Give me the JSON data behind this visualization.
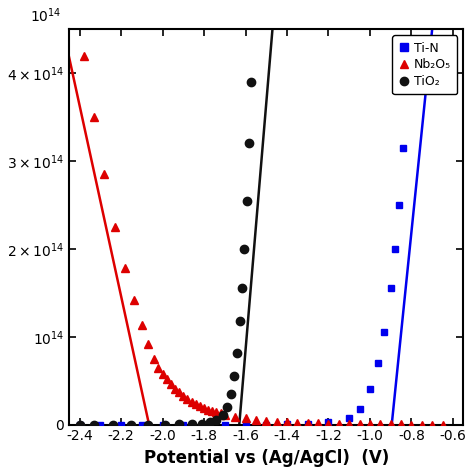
{
  "xlabel": "Potential vs (Ag/AgCl)  (V)",
  "xlim": [
    -2.45,
    -0.55
  ],
  "ylim": [
    0,
    450000000000000.0
  ],
  "xticks": [
    -2.4,
    -2.2,
    -2.0,
    -1.8,
    -1.6,
    -1.4,
    -1.2,
    -1.0,
    -0.8,
    -0.6
  ],
  "ytick_values": [
    0,
    100000000000000.0,
    200000000000000.0,
    300000000000000.0,
    400000000000000.0
  ],
  "background_color": "#ffffff",
  "series": [
    {
      "label": "Ti-N",
      "color": "#0000ee",
      "marker": "s",
      "markersize": 5,
      "linewidth": 1.8,
      "x_data": [
        -0.82,
        -0.84,
        -0.86,
        -0.88,
        -0.9,
        -0.93,
        -0.96,
        -1.0,
        -1.05,
        -1.1,
        -1.2,
        -1.3,
        -1.4,
        -1.5,
        -1.6,
        -1.7,
        -1.8,
        -1.9,
        -2.0,
        -2.1,
        -2.2,
        -2.3,
        -2.4
      ],
      "y_data": [
        390000000000000.0,
        315000000000000.0,
        250000000000000.0,
        200000000000000.0,
        155000000000000.0,
        105000000000000.0,
        70000000000000.0,
        40000000000000.0,
        18000000000000.0,
        8000000000000.0,
        2500000000000.0,
        800000000000.0,
        300000000000.0,
        100000000000.0,
        50000000000.0,
        30000000000.0,
        20000000000.0,
        10000000000.0,
        10000000000.0,
        10000000000.0,
        10000000000.0,
        10000000000.0,
        10000000000.0
      ],
      "fit_x": [
        -0.7,
        -0.895
      ],
      "fit_y": [
        450000000000000.0,
        0.0
      ]
    },
    {
      "label": "Nb₂O₅",
      "color": "#dd0000",
      "marker": "^",
      "markersize": 6,
      "linewidth": 1.8,
      "x_data": [
        -2.38,
        -2.33,
        -2.28,
        -2.23,
        -2.18,
        -2.14,
        -2.1,
        -2.07,
        -2.04,
        -2.02,
        -2.0,
        -1.98,
        -1.96,
        -1.94,
        -1.92,
        -1.9,
        -1.88,
        -1.86,
        -1.84,
        -1.82,
        -1.8,
        -1.78,
        -1.76,
        -1.74,
        -1.72,
        -1.7,
        -1.65,
        -1.6,
        -1.55,
        -1.5,
        -1.45,
        -1.4,
        -1.35,
        -1.3,
        -1.25,
        -1.2,
        -1.15,
        -1.1,
        -1.05,
        -1.0,
        -0.95,
        -0.9,
        -0.85,
        -0.8,
        -0.75,
        -0.7,
        -0.65
      ],
      "y_data": [
        420000000000000.0,
        350000000000000.0,
        285000000000000.0,
        225000000000000.0,
        178000000000000.0,
        142000000000000.0,
        113000000000000.0,
        92000000000000.0,
        75000000000000.0,
        65000000000000.0,
        58000000000000.0,
        52000000000000.0,
        46000000000000.0,
        41000000000000.0,
        37000000000000.0,
        33000000000000.0,
        29000000000000.0,
        26000000000000.0,
        23000000000000.0,
        21000000000000.0,
        19000000000000.0,
        17000000000000.0,
        15500000000000.0,
        14000000000000.0,
        12700000000000.0,
        11500000000000.0,
        9000000000000.0,
        7000000000000.0,
        5500000000000.0,
        4300000000000.0,
        3400000000000.0,
        2700000000000.0,
        2100000000000.0,
        1700000000000.0,
        1300000000000.0,
        1000000000000.0,
        800000000000.0,
        600000000000.0,
        500000000000.0,
        400000000000.0,
        300000000000.0,
        250000000000.0,
        200000000000.0,
        150000000000.0,
        100000000000.0,
        100000000000.0,
        100000000000.0
      ],
      "fit_x": [
        -2.48,
        -2.065
      ],
      "fit_y": [
        450000000000000.0,
        0.0
      ]
    },
    {
      "label": "TiO₂",
      "color": "#111111",
      "marker": "o",
      "markersize": 6,
      "linewidth": 1.8,
      "x_data": [
        -1.575,
        -1.585,
        -1.595,
        -1.605,
        -1.615,
        -1.625,
        -1.64,
        -1.655,
        -1.67,
        -1.69,
        -1.71,
        -1.74,
        -1.77,
        -1.81,
        -1.86,
        -1.92,
        -1.99,
        -2.07,
        -2.15,
        -2.24,
        -2.33,
        -2.4
      ],
      "y_data": [
        390000000000000.0,
        320000000000000.0,
        255000000000000.0,
        200000000000000.0,
        155000000000000.0,
        118000000000000.0,
        82000000000000.0,
        55000000000000.0,
        35000000000000.0,
        20000000000000.0,
        11000000000000.0,
        5500000000000.0,
        2700000000000.0,
        1200000000000.0,
        500000000000.0,
        200000000000.0,
        100000000000.0,
        60000000000.0,
        40000000000.0,
        30000000000.0,
        20000000000.0,
        10000000000.0
      ],
      "fit_x": [
        -1.47,
        -1.63
      ],
      "fit_y": [
        450000000000000.0,
        0.0
      ]
    }
  ],
  "legend_labels": [
    "Ti-N",
    "Nb₂O₅",
    "TiO₂"
  ],
  "legend_colors": [
    "#0000ee",
    "#dd0000",
    "#111111"
  ],
  "legend_markers": [
    "s",
    "^",
    "o"
  ]
}
